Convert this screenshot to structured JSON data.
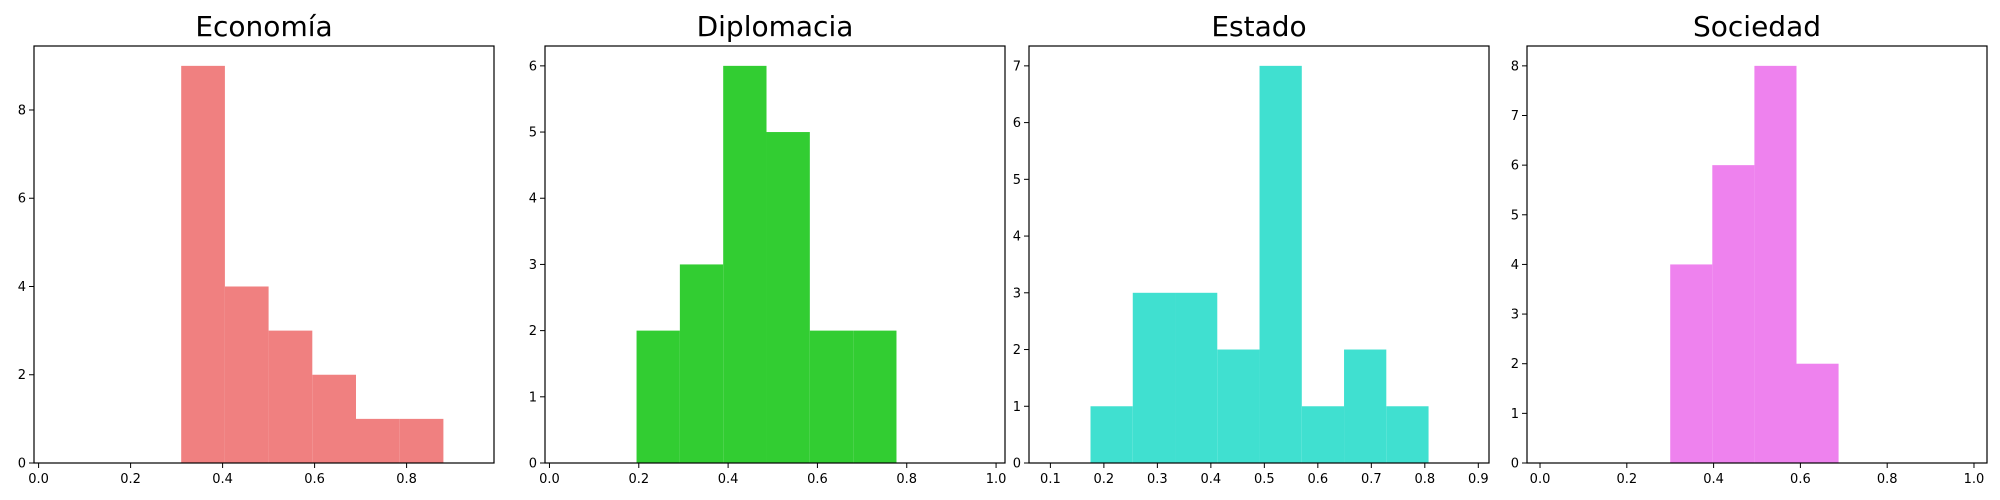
{
  "chart_data": [
    {
      "type": "bar",
      "title": "Economía",
      "color": "#f08080",
      "bins": [
        {
          "x0": 0.31,
          "x1": 0.405,
          "value": 9
        },
        {
          "x0": 0.405,
          "x1": 0.5,
          "value": 4
        },
        {
          "x0": 0.5,
          "x1": 0.595,
          "value": 3
        },
        {
          "x0": 0.595,
          "x1": 0.69,
          "value": 2
        },
        {
          "x0": 0.69,
          "x1": 0.785,
          "value": 1
        },
        {
          "x0": 0.785,
          "x1": 0.88,
          "value": 1
        }
      ],
      "xlim": [
        -0.01,
        0.99
      ],
      "ylim": [
        0,
        9.45
      ],
      "xticks": [
        0.0,
        0.2,
        0.4,
        0.6,
        0.8
      ],
      "xtick_labels": [
        "0.0",
        "0.2",
        "0.4",
        "0.6",
        "0.8"
      ],
      "yticks": [
        0,
        2,
        4,
        6,
        8
      ],
      "ytick_labels": [
        "0",
        "2",
        "4",
        "6",
        "8"
      ],
      "xlabel": "",
      "ylabel": ""
    },
    {
      "type": "bar",
      "title": "Diplomacia",
      "color": "#32cd32",
      "bins": [
        {
          "x0": 0.195,
          "x1": 0.292,
          "value": 2
        },
        {
          "x0": 0.292,
          "x1": 0.389,
          "value": 3
        },
        {
          "x0": 0.389,
          "x1": 0.486,
          "value": 6
        },
        {
          "x0": 0.486,
          "x1": 0.583,
          "value": 5
        },
        {
          "x0": 0.583,
          "x1": 0.68,
          "value": 2
        },
        {
          "x0": 0.68,
          "x1": 0.777,
          "value": 2
        }
      ],
      "xlim": [
        -0.01,
        1.02
      ],
      "ylim": [
        0,
        6.3
      ],
      "xticks": [
        0.0,
        0.2,
        0.4,
        0.6,
        0.8,
        1.0
      ],
      "xtick_labels": [
        "0.0",
        "0.2",
        "0.4",
        "0.6",
        "0.8",
        "1.0"
      ],
      "yticks": [
        0,
        1,
        2,
        3,
        4,
        5,
        6
      ],
      "ytick_labels": [
        "0",
        "1",
        "2",
        "3",
        "4",
        "5",
        "6"
      ],
      "xlabel": "",
      "ylabel": ""
    },
    {
      "type": "bar",
      "title": "Estado",
      "color": "#40e0d0",
      "bins": [
        {
          "x0": 0.175,
          "x1": 0.254,
          "value": 1
        },
        {
          "x0": 0.254,
          "x1": 0.333,
          "value": 3
        },
        {
          "x0": 0.333,
          "x1": 0.412,
          "value": 3
        },
        {
          "x0": 0.412,
          "x1": 0.491,
          "value": 2
        },
        {
          "x0": 0.491,
          "x1": 0.57,
          "value": 7
        },
        {
          "x0": 0.57,
          "x1": 0.649,
          "value": 1
        },
        {
          "x0": 0.649,
          "x1": 0.728,
          "value": 2
        },
        {
          "x0": 0.728,
          "x1": 0.807,
          "value": 1
        }
      ],
      "xlim": [
        0.06,
        0.92
      ],
      "ylim": [
        0,
        7.35
      ],
      "xticks": [
        0.1,
        0.2,
        0.3,
        0.4,
        0.5,
        0.6,
        0.7,
        0.8,
        0.9
      ],
      "xtick_labels": [
        "0.1",
        "0.2",
        "0.3",
        "0.4",
        "0.5",
        "0.6",
        "0.7",
        "0.8",
        "0.9"
      ],
      "yticks": [
        0,
        1,
        2,
        3,
        4,
        5,
        6,
        7
      ],
      "ytick_labels": [
        "0",
        "1",
        "2",
        "3",
        "4",
        "5",
        "6",
        "7"
      ],
      "xlabel": "",
      "ylabel": ""
    },
    {
      "type": "bar",
      "title": "Sociedad",
      "color": "#ee82ee",
      "bins": [
        {
          "x0": 0.3,
          "x1": 0.397,
          "value": 4
        },
        {
          "x0": 0.397,
          "x1": 0.494,
          "value": 6
        },
        {
          "x0": 0.494,
          "x1": 0.591,
          "value": 8
        },
        {
          "x0": 0.591,
          "x1": 0.688,
          "value": 2
        }
      ],
      "xlim": [
        -0.03,
        1.03
      ],
      "ylim": [
        0,
        8.4
      ],
      "xticks": [
        0.0,
        0.2,
        0.4,
        0.6,
        0.8,
        1.0
      ],
      "xtick_labels": [
        "0.0",
        "0.2",
        "0.4",
        "0.6",
        "0.8",
        "1.0"
      ],
      "yticks": [
        0,
        1,
        2,
        3,
        4,
        5,
        6,
        7,
        8
      ],
      "ytick_labels": [
        "0",
        "1",
        "2",
        "3",
        "4",
        "5",
        "6",
        "7",
        "8"
      ],
      "xlabel": "",
      "ylabel": ""
    }
  ]
}
